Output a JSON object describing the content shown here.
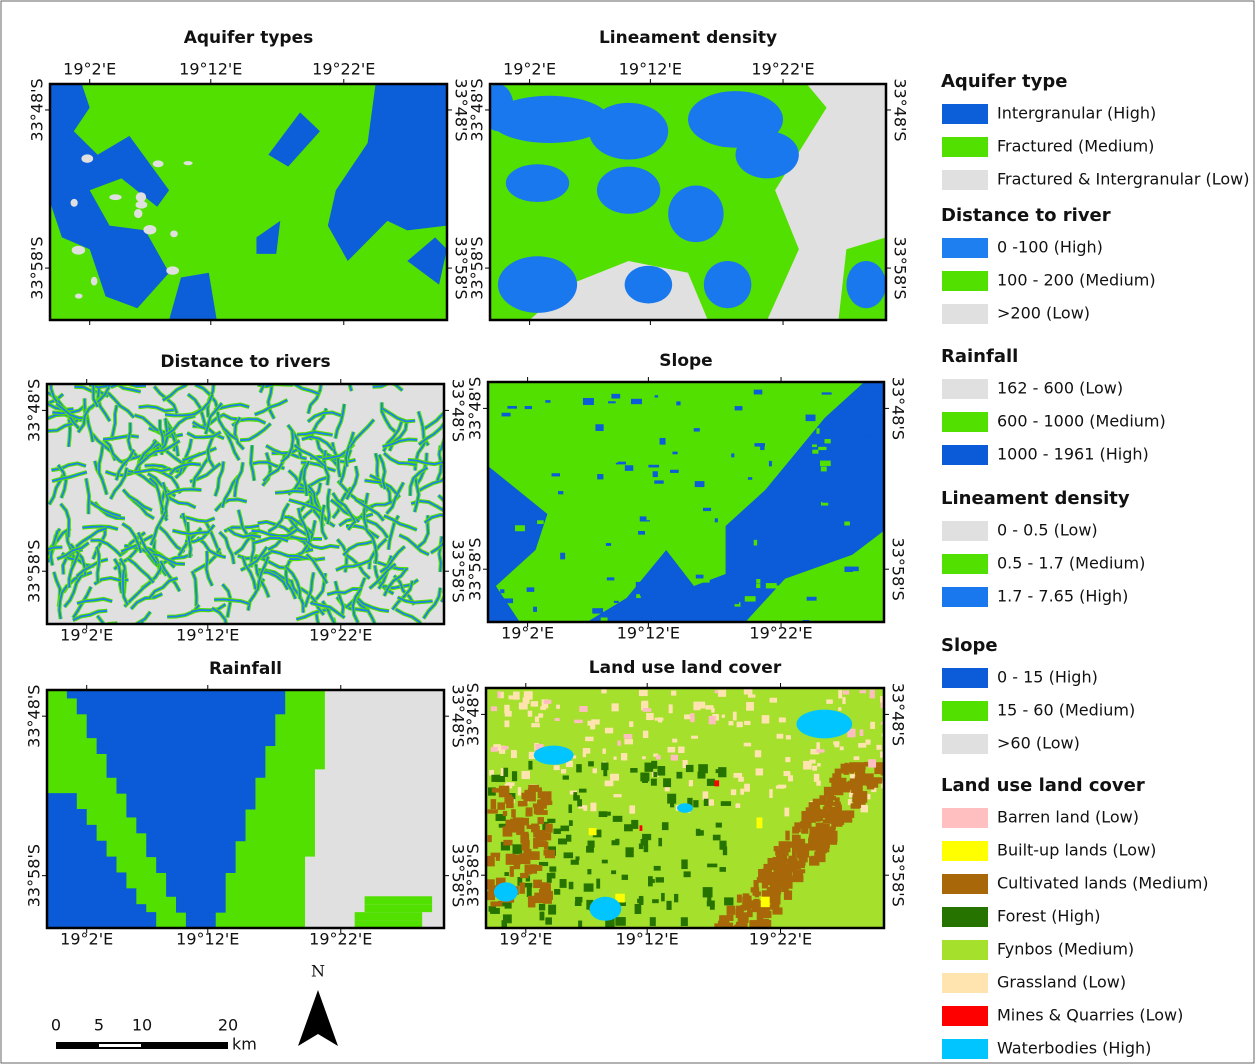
{
  "panels": [
    {
      "title": "Aquifer types",
      "x_labels": [
        "19°2'E",
        "19°12'E",
        "19°22'E"
      ],
      "y_labels": [
        "33°48'S",
        "33°58'S"
      ]
    },
    {
      "title": "Lineament density",
      "x_labels": [
        "19°2'E",
        "19°12'E",
        "19°22'E"
      ],
      "y_labels": [
        "33°48'S",
        "33°58'S"
      ]
    },
    {
      "title": "Distance to rivers",
      "x_labels": [
        "19°2'E",
        "19°12'E",
        "19°22'E"
      ],
      "y_labels": [
        "33°48'S",
        "33°58'S"
      ]
    },
    {
      "title": "Slope",
      "x_labels": [
        "19°2'E",
        "19°12'E",
        "19°22'E"
      ],
      "y_labels": [
        "33°48'S",
        "33°58'S"
      ]
    },
    {
      "title": "Rainfall",
      "x_labels": [
        "19°2'E",
        "19°12'E",
        "19°22'E"
      ],
      "y_labels": [
        "33°48'S",
        "33°58'S"
      ]
    },
    {
      "title": "Land use land cover",
      "x_labels": [
        "19°2'E",
        "19°12'E",
        "19°22'E"
      ],
      "y_labels": [
        "33°48'S",
        "33°58'S"
      ]
    }
  ],
  "legend": [
    {
      "title": "Aquifer type",
      "items": [
        {
          "label": "Intergranular (High)",
          "color": "#0d5fd9"
        },
        {
          "label": "Fractured (Medium)",
          "color": "#52e000"
        },
        {
          "label": "Fractured & Intergranular (Low)",
          "color": "#e0e0e0"
        }
      ]
    },
    {
      "title": "Distance to river",
      "items": [
        {
          "label": "0 -100 (High)",
          "color": "#1e7ff0"
        },
        {
          "label": "100 - 200 (Medium)",
          "color": "#52e000"
        },
        {
          "label": ">200 (Low)",
          "color": "#e0e0e0"
        }
      ]
    },
    {
      "title": "Rainfall",
      "items": [
        {
          "label": "162 - 600 (Low)",
          "color": "#e0e0e0"
        },
        {
          "label": "600 - 1000 (Medium)",
          "color": "#52e000"
        },
        {
          "label": "1000 - 1961 (High)",
          "color": "#0b5ad8"
        }
      ]
    },
    {
      "title": "Lineament density",
      "items": [
        {
          "label": "0 - 0.5 (Low)",
          "color": "#e0e0e0"
        },
        {
          "label": "0.5 - 1.7 (Medium)",
          "color": "#52e000"
        },
        {
          "label": "1.7 - 7.65 (High)",
          "color": "#1a78ee"
        }
      ]
    },
    {
      "title": "Slope",
      "items": [
        {
          "label": "0 - 15 (High)",
          "color": "#0c5bd8"
        },
        {
          "label": "15 - 60 (Medium)",
          "color": "#52e000"
        },
        {
          "label": ">60 (Low)",
          "color": "#e0e0e0"
        }
      ]
    },
    {
      "title": "Land use land cover",
      "items": [
        {
          "label": "Barren land (Low)",
          "color": "#ffbec0"
        },
        {
          "label": "Built-up lands (Low)",
          "color": "#ffff00"
        },
        {
          "label": "Cultivated lands (Medium)",
          "color": "#a8680a"
        },
        {
          "label": "Forest (High)",
          "color": "#267300"
        },
        {
          "label": "Fynbos (Medium)",
          "color": "#a4e02c"
        },
        {
          "label": "Grassland (Low)",
          "color": "#ffe4b0"
        },
        {
          "label": "Mines & Quarries (Low)",
          "color": "#ff0000"
        },
        {
          "label": "Waterbodies (High)",
          "color": "#00c5ff"
        }
      ]
    }
  ],
  "scale_bar": {
    "labels": [
      "0",
      "5",
      "10",
      "20"
    ],
    "unit": "km"
  },
  "north_arrow": "N"
}
